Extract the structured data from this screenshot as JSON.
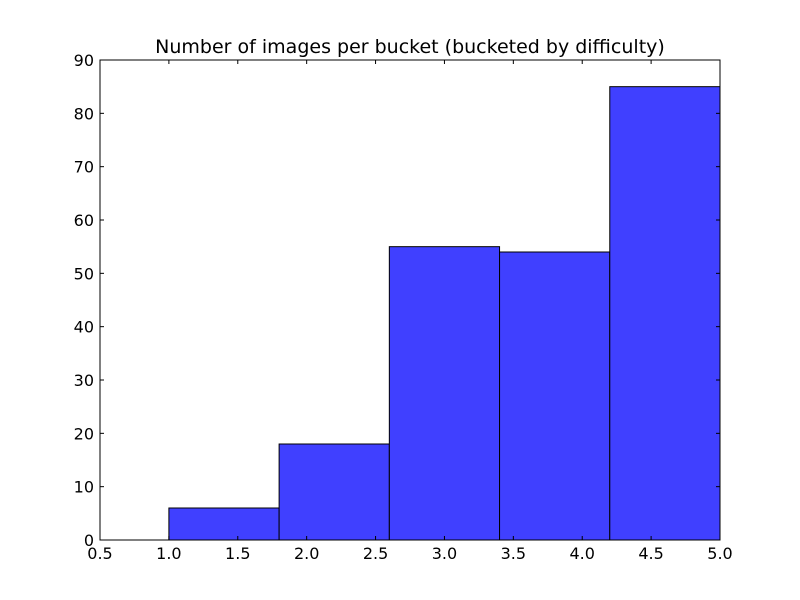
{
  "chart_data": {
    "type": "bar",
    "title": "Number of images per bucket (bucketed by difficulty)",
    "xlabel": "",
    "ylabel": "",
    "xlim": [
      0.5,
      5.0
    ],
    "ylim": [
      0,
      90
    ],
    "bin_edges": [
      1.0,
      1.8,
      2.6,
      3.4,
      4.2,
      5.0
    ],
    "values": [
      6,
      18,
      55,
      54,
      85
    ],
    "xticks": [
      0.5,
      1.0,
      1.5,
      2.0,
      2.5,
      3.0,
      3.5,
      4.0,
      4.5,
      5.0
    ],
    "xtick_labels": [
      "0.5",
      "1.0",
      "1.5",
      "2.0",
      "2.5",
      "3.0",
      "3.5",
      "4.0",
      "4.5",
      "5.0"
    ],
    "yticks": [
      0,
      10,
      20,
      30,
      40,
      50,
      60,
      70,
      80,
      90
    ],
    "ytick_labels": [
      "0",
      "10",
      "20",
      "30",
      "40",
      "50",
      "60",
      "70",
      "80",
      "90"
    ],
    "bar_color": "#4040ff",
    "edge_color": "#000000",
    "grid": false,
    "legend": "none"
  }
}
